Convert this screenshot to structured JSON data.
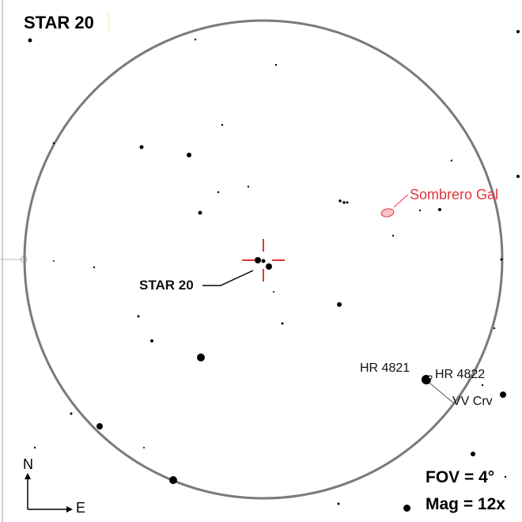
{
  "title": "STAR 20",
  "fov_text": "FOV = 4°",
  "mag_text": "Mag = 12x",
  "compass": {
    "north": "N",
    "east": "E"
  },
  "labels": {
    "star20": "STAR 20",
    "sombrero": "Sombrero Gal",
    "hr4821": "HR 4821",
    "hr4822": "HR 4822",
    "vvcrv": "VV Crv"
  },
  "colors": {
    "circle": "#7a7a7a",
    "reticle": "#e0353b",
    "galaxy_fill": "#f6c4c6",
    "galaxy_stroke": "#e0353b",
    "stars": "#000000"
  }
}
